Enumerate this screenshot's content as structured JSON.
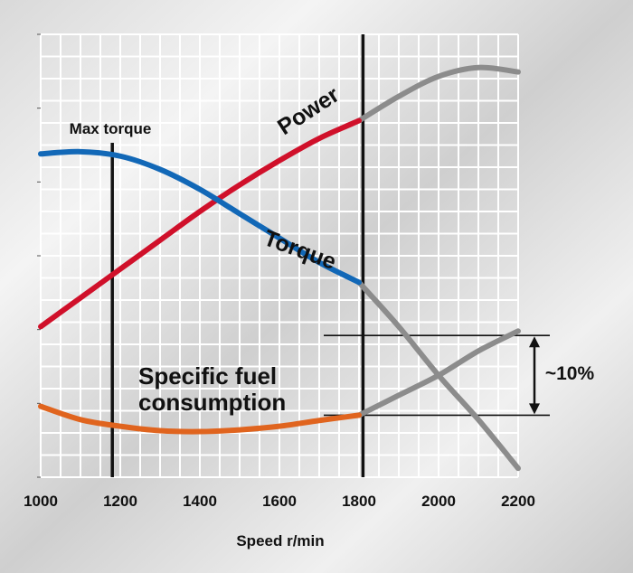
{
  "chart_data": {
    "type": "line",
    "title": "",
    "xlabel": "Speed r/min",
    "ylabel": "",
    "xlim": [
      1000,
      2200
    ],
    "x_ticks": [
      "1000",
      "1200",
      "1400",
      "1600",
      "1800",
      "2000",
      "2200"
    ],
    "grid": true,
    "y_axis": "unlabeled, relative",
    "ylim": [
      0,
      100
    ],
    "series": [
      {
        "name": "Power",
        "color": "#d0102a",
        "color_beyond": "#8c8c8c",
        "x": [
          1000,
          1100,
          1200,
          1300,
          1400,
          1500,
          1600,
          1700,
          1800,
          1900,
          2000,
          2100,
          2200
        ],
        "y": [
          34,
          40.5,
          47,
          53.5,
          60,
          66,
          71.5,
          76.5,
          80.5,
          86,
          90.5,
          92.5,
          91.5
        ]
      },
      {
        "name": "Torque",
        "color": "#1268b7",
        "color_beyond": "#8c8c8c",
        "x": [
          1000,
          1100,
          1200,
          1300,
          1400,
          1500,
          1600,
          1700,
          1800,
          1900,
          2000,
          2100,
          2200
        ],
        "y": [
          73,
          73.5,
          72.5,
          69.5,
          65,
          59.5,
          54,
          48.5,
          44,
          34,
          23,
          13,
          2
        ]
      },
      {
        "name": "Specific fuel consumption",
        "color": "#e0641e",
        "color_beyond": "#8c8c8c",
        "x": [
          1000,
          1100,
          1200,
          1300,
          1400,
          1500,
          1600,
          1700,
          1800,
          1900,
          2000,
          2100,
          2200
        ],
        "y": [
          16,
          13,
          11.5,
          10.5,
          10.3,
          10.7,
          11.5,
          12.8,
          14,
          18.5,
          23,
          28.5,
          33
        ]
      }
    ],
    "reference_lines": [
      {
        "label": "Max torque",
        "x": 1180
      },
      {
        "label": "",
        "x": 1810
      }
    ],
    "annotations": [
      {
        "text": "~10%",
        "y_range": [
          14,
          32
        ]
      }
    ]
  }
}
